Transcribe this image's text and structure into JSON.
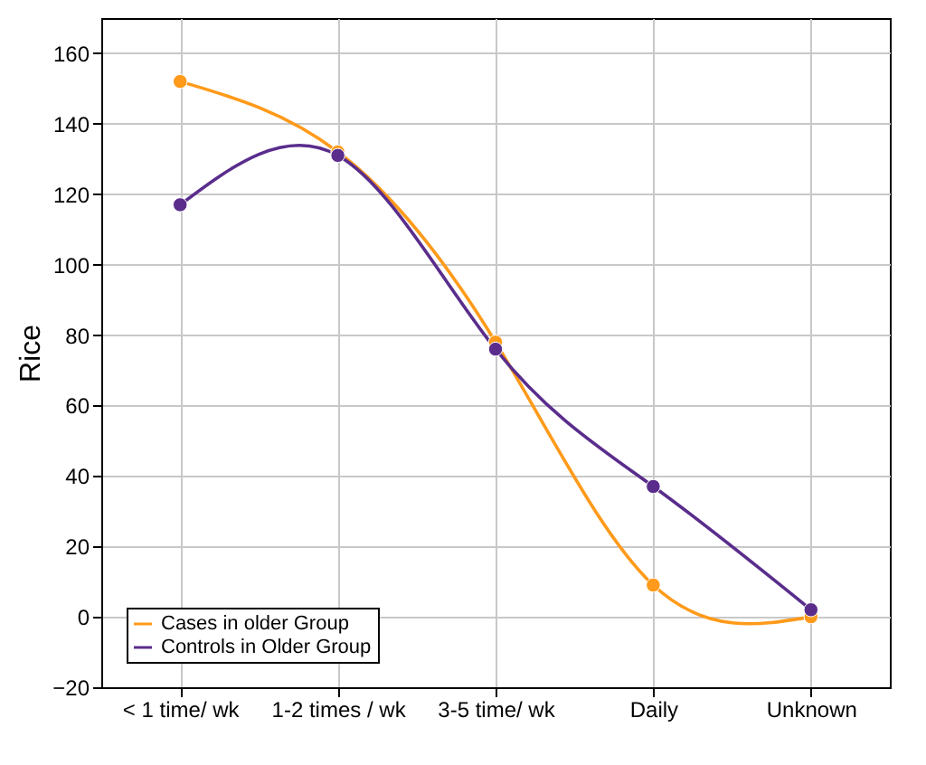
{
  "chart_data": {
    "type": "line",
    "ylabel": "Rice",
    "categories": [
      "< 1 time/ wk",
      "1-2 times / wk",
      "3-5 time/ wk",
      "Daily",
      "Unknown"
    ],
    "series": [
      {
        "name": "Cases in older Group",
        "color": "#ff9a1a",
        "values": [
          152,
          132,
          78,
          9,
          0
        ]
      },
      {
        "name": "Controls in Older Group",
        "color": "#5a2d8c",
        "values": [
          117,
          131,
          76,
          37,
          2
        ]
      }
    ],
    "ylim": [
      -20,
      170
    ],
    "yticks": [
      -20,
      0,
      20,
      40,
      60,
      80,
      100,
      120,
      140,
      160
    ],
    "grid": true,
    "legend": "bottom left",
    "marker": "circle",
    "line_style": "solid"
  }
}
